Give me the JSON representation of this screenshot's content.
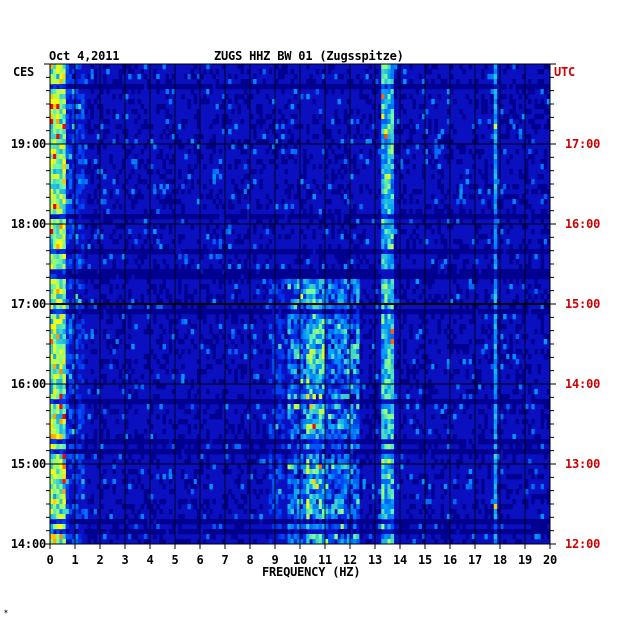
{
  "header": {
    "date": "Oct 4,2011",
    "station": "ZUGS HHZ BW 01 (Zugsspitze)",
    "left_timezone": "CES",
    "right_timezone": "UTC"
  },
  "chart_data": {
    "type": "heatmap",
    "title": "ZUGS HHZ BW 01 (Zugsspitze)",
    "date": "Oct 4,2011",
    "xlabel": "FREQUENCY (HZ)",
    "xlim": [
      0,
      20
    ],
    "x_ticks": [
      "0",
      "1",
      "2",
      "3",
      "4",
      "5",
      "6",
      "7",
      "8",
      "9",
      "10",
      "11",
      "12",
      "13",
      "14",
      "15",
      "16",
      "17",
      "18",
      "19",
      "20"
    ],
    "y_left_label": "CES",
    "y_right_label": "UTC",
    "y_left_ticks": [
      "14:00",
      "15:00",
      "16:00",
      "17:00",
      "18:00",
      "19:00"
    ],
    "y_right_ticks": [
      "12:00",
      "13:00",
      "14:00",
      "15:00",
      "16:00",
      "17:00"
    ],
    "time_range_ces": [
      "14:00",
      "20:00"
    ],
    "colors": {
      "background": "#1010c8",
      "grid": "#000000",
      "utc_text": "#d00000",
      "low": "#0000a0",
      "mid": "#00d0ff",
      "high": "#ffff00",
      "peak": "#ff0000"
    },
    "energy_bands_hz": [
      {
        "name": "low-frequency",
        "range": [
          0,
          0.6
        ],
        "level": "high"
      },
      {
        "name": "band-10-12",
        "range": [
          10,
          12
        ],
        "level": "medium-high"
      },
      {
        "name": "band-13.5",
        "range": [
          13.2,
          13.8
        ],
        "level": "medium-high"
      },
      {
        "name": "line-17.8",
        "range": [
          17.7,
          17.9
        ],
        "level": "medium"
      }
    ]
  },
  "footer": {
    "mark": "✶"
  }
}
